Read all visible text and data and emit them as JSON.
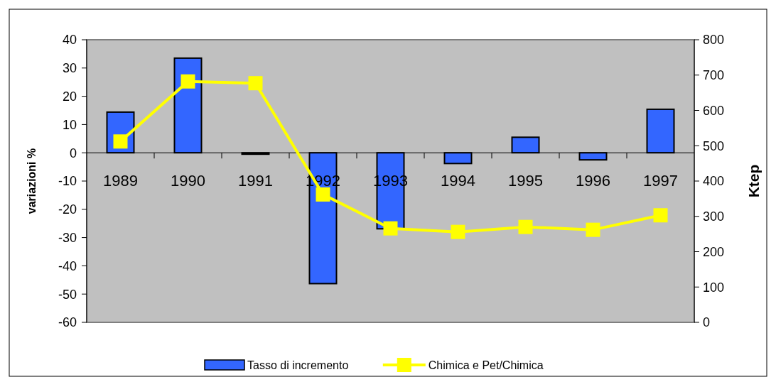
{
  "chart_data": {
    "type": "bar",
    "ylabel": "variazioni %",
    "y2label": "Ktep",
    "categories": [
      "1989",
      "1990",
      "1991",
      "1992",
      "1993",
      "1994",
      "1995",
      "1996",
      "1997"
    ],
    "series": [
      {
        "name": "Tasso di incremento",
        "color": "#3366ff",
        "values": [
          14.4,
          33.5,
          -0.5,
          -46.3,
          -26.9,
          -3.8,
          5.5,
          -2.5,
          15.4
        ]
      },
      {
        "name": "Chimica e Pet/Chimica",
        "type": "line",
        "axis": "y2",
        "color": "#ffff00",
        "marker": "square",
        "values": [
          512,
          682,
          677,
          362,
          266,
          256,
          270,
          262,
          303
        ]
      }
    ],
    "ylim": [
      -60,
      40
    ],
    "yticks": [
      -60,
      -50,
      -40,
      -30,
      -20,
      -10,
      0,
      10,
      20,
      30,
      40
    ],
    "y2lim": [
      0,
      800
    ],
    "y2ticks": [
      0,
      100,
      200,
      300,
      400,
      500,
      600,
      700,
      800
    ],
    "legend": "bottom"
  }
}
